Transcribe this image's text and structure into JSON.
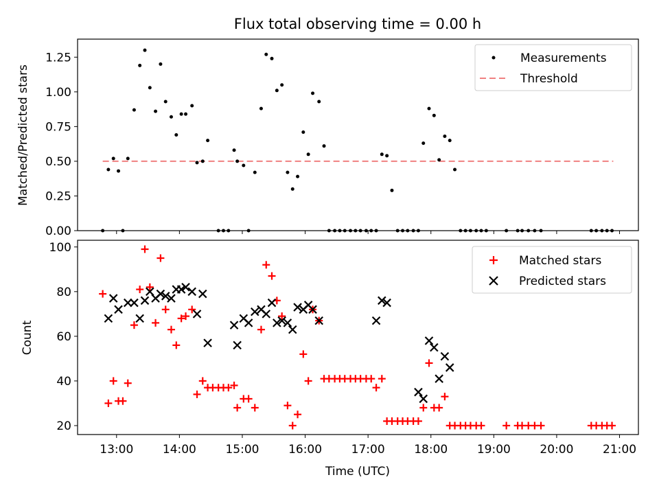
{
  "chart_data": [
    {
      "type": "scatter",
      "title": "Flux total observing time = 0.00 h",
      "xlabel": "",
      "ylabel": "Matched/Predicted stars",
      "xlim_hours": [
        12.38,
        21.3
      ],
      "ylim": [
        0,
        1.38
      ],
      "yticks": [
        0,
        0.25,
        0.5,
        0.75,
        1.0,
        1.25
      ],
      "ytick_labels": [
        "0.00",
        "0.25",
        "0.50",
        "0.75",
        "1.00",
        "1.25"
      ],
      "legend": {
        "position": "upper-right",
        "entries": [
          "Measurements",
          "Threshold"
        ]
      },
      "threshold": {
        "value": 0.5,
        "x_start": 12.78,
        "x_end": 20.9,
        "color": "#f08080"
      },
      "series": [
        {
          "name": "Measurements",
          "color": "#000000",
          "points": [
            [
              12.78,
              0.0
            ],
            [
              12.87,
              0.44
            ],
            [
              12.95,
              0.52
            ],
            [
              13.03,
              0.43
            ],
            [
              13.1,
              0.0
            ],
            [
              13.18,
              0.52
            ],
            [
              13.28,
              0.87
            ],
            [
              13.37,
              1.19
            ],
            [
              13.45,
              1.3
            ],
            [
              13.53,
              1.03
            ],
            [
              13.62,
              0.86
            ],
            [
              13.7,
              1.2
            ],
            [
              13.78,
              0.93
            ],
            [
              13.87,
              0.82
            ],
            [
              13.95,
              0.69
            ],
            [
              14.03,
              0.84
            ],
            [
              14.1,
              0.84
            ],
            [
              14.2,
              0.9
            ],
            [
              14.28,
              0.49
            ],
            [
              14.37,
              0.5
            ],
            [
              14.45,
              0.65
            ],
            [
              14.62,
              0.0
            ],
            [
              14.7,
              0.0
            ],
            [
              14.78,
              0.0
            ],
            [
              14.87,
              0.58
            ],
            [
              14.92,
              0.5
            ],
            [
              15.02,
              0.47
            ],
            [
              15.1,
              0.0
            ],
            [
              15.2,
              0.42
            ],
            [
              15.3,
              0.88
            ],
            [
              15.38,
              1.27
            ],
            [
              15.47,
              1.24
            ],
            [
              15.55,
              1.01
            ],
            [
              15.63,
              1.05
            ],
            [
              15.72,
              0.42
            ],
            [
              15.8,
              0.3
            ],
            [
              15.88,
              0.39
            ],
            [
              15.97,
              0.71
            ],
            [
              16.05,
              0.55
            ],
            [
              16.12,
              0.99
            ],
            [
              16.22,
              0.93
            ],
            [
              16.3,
              0.61
            ],
            [
              16.38,
              0.0
            ],
            [
              16.47,
              0.0
            ],
            [
              16.55,
              0.0
            ],
            [
              16.63,
              0.0
            ],
            [
              16.72,
              0.0
            ],
            [
              16.8,
              0.0
            ],
            [
              16.88,
              0.0
            ],
            [
              16.97,
              0.0
            ],
            [
              17.05,
              0.0
            ],
            [
              17.13,
              0.0
            ],
            [
              17.22,
              0.55
            ],
            [
              17.3,
              0.54
            ],
            [
              17.38,
              0.29
            ],
            [
              17.47,
              0.0
            ],
            [
              17.55,
              0.0
            ],
            [
              17.63,
              0.0
            ],
            [
              17.72,
              0.0
            ],
            [
              17.8,
              0.0
            ],
            [
              17.88,
              0.63
            ],
            [
              17.97,
              0.88
            ],
            [
              18.05,
              0.83
            ],
            [
              18.13,
              0.51
            ],
            [
              18.22,
              0.68
            ],
            [
              18.3,
              0.65
            ],
            [
              18.38,
              0.44
            ],
            [
              18.47,
              0.0
            ],
            [
              18.55,
              0.0
            ],
            [
              18.63,
              0.0
            ],
            [
              18.72,
              0.0
            ],
            [
              18.8,
              0.0
            ],
            [
              18.88,
              0.0
            ],
            [
              19.2,
              0.0
            ],
            [
              19.38,
              0.0
            ],
            [
              19.45,
              0.0
            ],
            [
              19.55,
              0.0
            ],
            [
              19.65,
              0.0
            ],
            [
              19.75,
              0.0
            ],
            [
              20.55,
              0.0
            ],
            [
              20.63,
              0.0
            ],
            [
              20.72,
              0.0
            ],
            [
              20.8,
              0.0
            ],
            [
              20.88,
              0.0
            ]
          ]
        }
      ]
    },
    {
      "type": "scatter",
      "title": "",
      "xlabel": "Time (UTC)",
      "ylabel": "Count",
      "xlim_hours": [
        12.38,
        21.3
      ],
      "ylim": [
        16,
        103
      ],
      "yticks": [
        20,
        40,
        60,
        80,
        100
      ],
      "ytick_labels": [
        "20",
        "40",
        "60",
        "80",
        "100"
      ],
      "xticks_hours": [
        13,
        14,
        15,
        16,
        17,
        18,
        19,
        20,
        21
      ],
      "xtick_labels": [
        "13:00",
        "14:00",
        "15:00",
        "16:00",
        "17:00",
        "18:00",
        "19:00",
        "20:00",
        "21:00"
      ],
      "legend": {
        "position": "upper-right",
        "entries": [
          "Matched stars",
          "Predicted stars"
        ]
      },
      "series": [
        {
          "name": "Matched stars",
          "marker": "+",
          "color": "#ff0000",
          "points": [
            [
              12.78,
              79
            ],
            [
              12.87,
              30
            ],
            [
              12.95,
              40
            ],
            [
              13.03,
              31
            ],
            [
              13.1,
              31
            ],
            [
              13.18,
              39
            ],
            [
              13.28,
              65
            ],
            [
              13.37,
              81
            ],
            [
              13.45,
              99
            ],
            [
              13.53,
              82
            ],
            [
              13.62,
              66
            ],
            [
              13.7,
              95
            ],
            [
              13.78,
              72
            ],
            [
              13.87,
              63
            ],
            [
              13.95,
              56
            ],
            [
              14.03,
              68
            ],
            [
              14.1,
              69
            ],
            [
              14.2,
              72
            ],
            [
              14.28,
              34
            ],
            [
              14.37,
              40
            ],
            [
              14.45,
              37
            ],
            [
              14.53,
              37
            ],
            [
              14.62,
              37
            ],
            [
              14.7,
              37
            ],
            [
              14.78,
              37
            ],
            [
              14.87,
              38
            ],
            [
              14.92,
              28
            ],
            [
              15.02,
              32
            ],
            [
              15.1,
              32
            ],
            [
              15.2,
              28
            ],
            [
              15.3,
              63
            ],
            [
              15.38,
              92
            ],
            [
              15.47,
              87
            ],
            [
              15.55,
              76
            ],
            [
              15.63,
              69
            ],
            [
              15.72,
              29
            ],
            [
              15.8,
              20
            ],
            [
              15.88,
              25
            ],
            [
              15.97,
              52
            ],
            [
              16.05,
              40
            ],
            [
              16.12,
              72
            ],
            [
              16.22,
              67
            ],
            [
              16.3,
              41
            ],
            [
              16.38,
              41
            ],
            [
              16.47,
              41
            ],
            [
              16.55,
              41
            ],
            [
              16.63,
              41
            ],
            [
              16.72,
              41
            ],
            [
              16.8,
              41
            ],
            [
              16.88,
              41
            ],
            [
              16.97,
              41
            ],
            [
              17.05,
              41
            ],
            [
              17.13,
              37
            ],
            [
              17.22,
              41
            ],
            [
              17.3,
              22
            ],
            [
              17.38,
              22
            ],
            [
              17.47,
              22
            ],
            [
              17.55,
              22
            ],
            [
              17.63,
              22
            ],
            [
              17.72,
              22
            ],
            [
              17.8,
              22
            ],
            [
              17.88,
              28
            ],
            [
              17.97,
              48
            ],
            [
              18.05,
              28
            ],
            [
              18.13,
              28
            ],
            [
              18.22,
              33
            ],
            [
              18.3,
              20
            ],
            [
              18.38,
              20
            ],
            [
              18.47,
              20
            ],
            [
              18.55,
              20
            ],
            [
              18.63,
              20
            ],
            [
              18.72,
              20
            ],
            [
              18.8,
              20
            ],
            [
              19.2,
              20
            ],
            [
              19.38,
              20
            ],
            [
              19.45,
              20
            ],
            [
              19.55,
              20
            ],
            [
              19.65,
              20
            ],
            [
              19.75,
              20
            ],
            [
              20.55,
              20
            ],
            [
              20.63,
              20
            ],
            [
              20.72,
              20
            ],
            [
              20.8,
              20
            ],
            [
              20.88,
              20
            ]
          ]
        },
        {
          "name": "Predicted stars",
          "marker": "x",
          "color": "#000000",
          "points": [
            [
              12.87,
              68
            ],
            [
              12.95,
              77
            ],
            [
              13.03,
              72
            ],
            [
              13.18,
              75
            ],
            [
              13.28,
              75
            ],
            [
              13.37,
              68
            ],
            [
              13.45,
              76
            ],
            [
              13.53,
              80
            ],
            [
              13.62,
              77
            ],
            [
              13.7,
              79
            ],
            [
              13.78,
              78
            ],
            [
              13.87,
              77
            ],
            [
              13.95,
              81
            ],
            [
              14.03,
              81
            ],
            [
              14.1,
              82
            ],
            [
              14.2,
              80
            ],
            [
              14.28,
              70
            ],
            [
              14.37,
              79
            ],
            [
              14.45,
              57
            ],
            [
              14.87,
              65
            ],
            [
              14.92,
              56
            ],
            [
              15.02,
              68
            ],
            [
              15.1,
              66
            ],
            [
              15.2,
              71
            ],
            [
              15.3,
              72
            ],
            [
              15.38,
              70
            ],
            [
              15.47,
              75
            ],
            [
              15.55,
              66
            ],
            [
              15.63,
              67
            ],
            [
              15.72,
              66
            ],
            [
              15.8,
              63
            ],
            [
              15.88,
              73
            ],
            [
              15.97,
              72
            ],
            [
              16.05,
              74
            ],
            [
              16.12,
              72
            ],
            [
              16.22,
              67
            ],
            [
              17.13,
              67
            ],
            [
              17.22,
              76
            ],
            [
              17.3,
              75
            ],
            [
              17.8,
              35
            ],
            [
              17.88,
              32
            ],
            [
              17.97,
              58
            ],
            [
              18.05,
              55
            ],
            [
              18.13,
              41
            ],
            [
              18.22,
              51
            ],
            [
              18.3,
              46
            ]
          ]
        }
      ]
    }
  ]
}
